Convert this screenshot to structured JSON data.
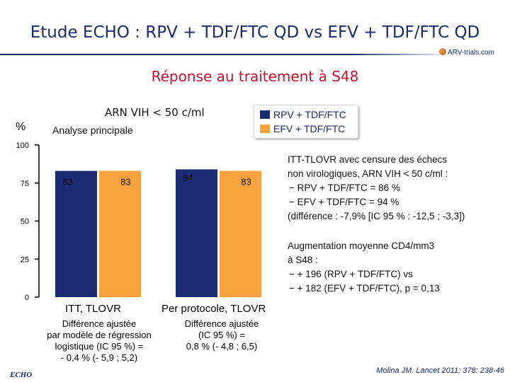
{
  "slide": {
    "title": "Etude ECHO : RPV + TDF/FTC QD vs EFV + TDF/FTC QD",
    "logo_text": "ARV-trials.com",
    "section_title": "Réponse au traitement à S48",
    "chart_subtitle": "ARN VIH < 50 c/ml",
    "chart_note": "Analyse principale",
    "study_tag": "ECHO",
    "citation": "Molina JM. Lancet 2011; 378: 238-46"
  },
  "chart_data": {
    "type": "bar",
    "title": "ARN VIH < 50 c/ml",
    "subtitle": "Analyse principale",
    "ylabel": "%",
    "ylim": [
      0,
      100
    ],
    "yticks": [
      "0",
      "25",
      "50",
      "75",
      "100"
    ],
    "categories": [
      "ITT, TLOVR",
      "Per protocole, TLOVR"
    ],
    "category_notes": [
      "Différence ajustée\npar modèle de régression\nlogistique (IC 95 %) =\n- 0,4 % (- 5,9 ; 5,2)",
      "Différence ajustée\n(IC 95 %) =\n0,8 % (- 4,8 ; 6,5)"
    ],
    "series": [
      {
        "name": "RPV + TDF/FTC",
        "color": "#1c2c72",
        "values": [
          83,
          84
        ],
        "labels": [
          "83",
          "84"
        ]
      },
      {
        "name": "EFV + TDF/FTC",
        "color": "#f7a13f",
        "values": [
          83,
          83
        ],
        "labels": [
          "83",
          "83"
        ]
      }
    ],
    "legend_position": "top-right",
    "grid": false
  },
  "side_notes": {
    "block1": [
      "ITT-TLOVR avec censure des échecs",
      "non virologiques, ARN VIH < 50 c/ml :",
      "− RPV + TDF/FTC = 86 %",
      "− EFV + TDF/FTC = 94 %",
      "(différence : -7,9% [IC 95 % : -12,5 ; -3,3])"
    ],
    "block2": [
      "Augmentation moyenne CD4/mm3",
      "à S48 :",
      "− + 196 (RPV + TDF/FTC) vs",
      "− + 182 (EFV + TDF/FTC), p = 0,13"
    ]
  }
}
